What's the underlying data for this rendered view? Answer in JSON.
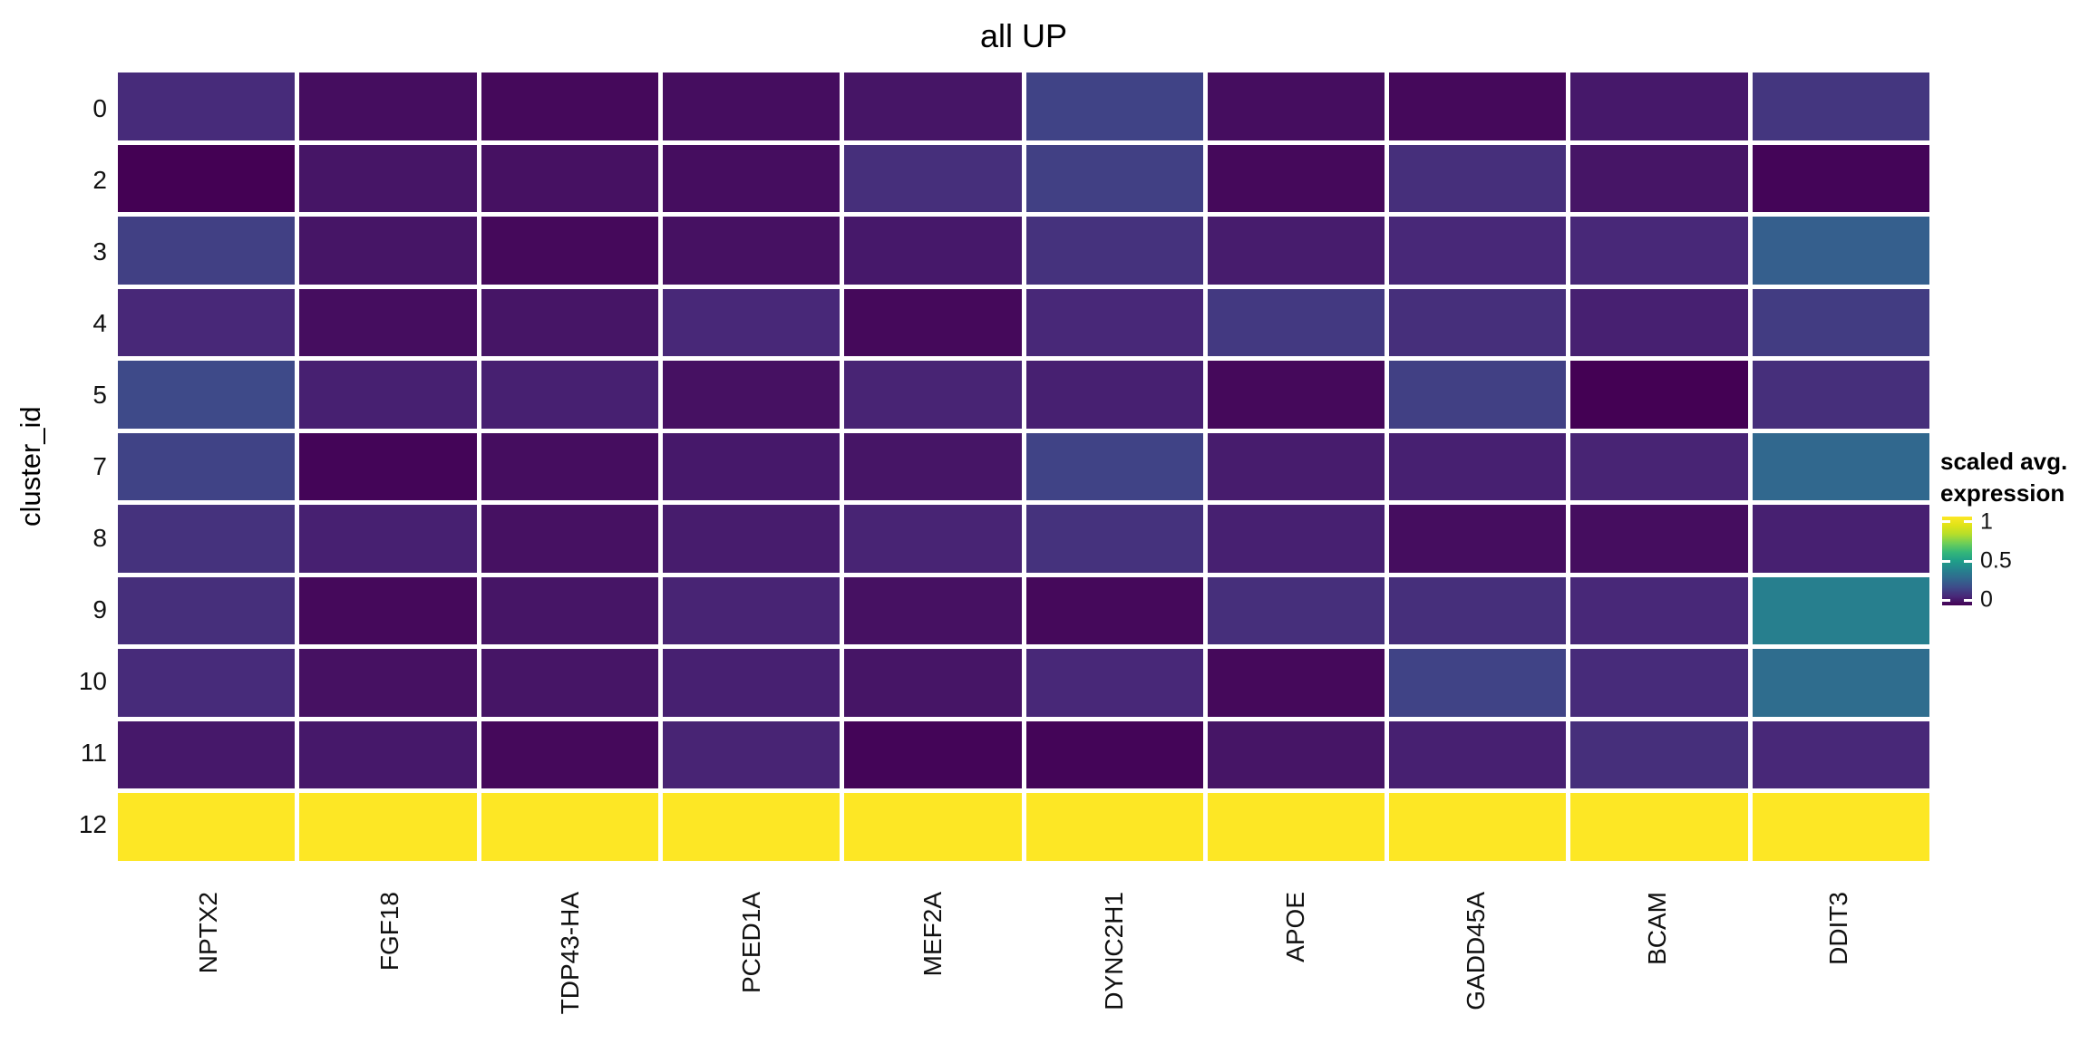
{
  "figure": {
    "background": "#ffffff"
  },
  "chart_data": {
    "type": "heatmap",
    "title": "all UP",
    "xlabel": "",
    "ylabel": "cluster_id",
    "x_categories": [
      "NPTX2",
      "FGF18",
      "TDP43-HA",
      "PCED1A",
      "MEF2A",
      "DYNC2H1",
      "APOE",
      "GADD45A",
      "BCAM",
      "DDIT3"
    ],
    "y_categories": [
      "0",
      "2",
      "3",
      "4",
      "5",
      "7",
      "8",
      "9",
      "10",
      "11",
      "12"
    ],
    "values": [
      [
        0.11,
        0.03,
        0.02,
        0.03,
        0.05,
        0.18,
        0.03,
        0.02,
        0.06,
        0.14
      ],
      [
        0.0,
        0.05,
        0.04,
        0.03,
        0.12,
        0.17,
        0.02,
        0.12,
        0.05,
        0.01
      ],
      [
        0.17,
        0.05,
        0.02,
        0.04,
        0.06,
        0.13,
        0.07,
        0.1,
        0.1,
        0.27
      ],
      [
        0.1,
        0.03,
        0.05,
        0.1,
        0.02,
        0.1,
        0.15,
        0.12,
        0.08,
        0.16
      ],
      [
        0.2,
        0.08,
        0.08,
        0.04,
        0.09,
        0.08,
        0.02,
        0.17,
        0.0,
        0.12
      ],
      [
        0.18,
        0.01,
        0.03,
        0.06,
        0.05,
        0.18,
        0.07,
        0.08,
        0.09,
        0.3
      ],
      [
        0.13,
        0.08,
        0.04,
        0.07,
        0.09,
        0.13,
        0.08,
        0.03,
        0.03,
        0.08
      ],
      [
        0.12,
        0.02,
        0.05,
        0.09,
        0.04,
        0.02,
        0.12,
        0.12,
        0.1,
        0.39
      ],
      [
        0.11,
        0.04,
        0.05,
        0.08,
        0.05,
        0.1,
        0.02,
        0.18,
        0.11,
        0.32
      ],
      [
        0.06,
        0.06,
        0.02,
        0.09,
        0.01,
        0.01,
        0.05,
        0.08,
        0.12,
        0.1
      ],
      [
        1.0,
        1.0,
        1.0,
        1.0,
        1.0,
        1.0,
        1.0,
        1.0,
        1.0,
        1.0
      ]
    ],
    "colormap": "viridis",
    "colormap_stops": [
      "#440154",
      "#482878",
      "#3e4a89",
      "#31688e",
      "#26828e",
      "#1f9e89",
      "#35b779",
      "#6ece58",
      "#b5de2b",
      "#dfe318",
      "#fde725"
    ],
    "value_range": [
      0,
      1
    ],
    "grid": false,
    "legend": {
      "position": "right",
      "title_line1": "scaled avg.",
      "title_line2": "expression",
      "tick_labels": [
        "1",
        "0.5",
        "0"
      ],
      "tick_values": [
        1,
        0.5,
        0
      ],
      "tick_positions_pct": [
        6,
        50,
        94
      ]
    }
  }
}
